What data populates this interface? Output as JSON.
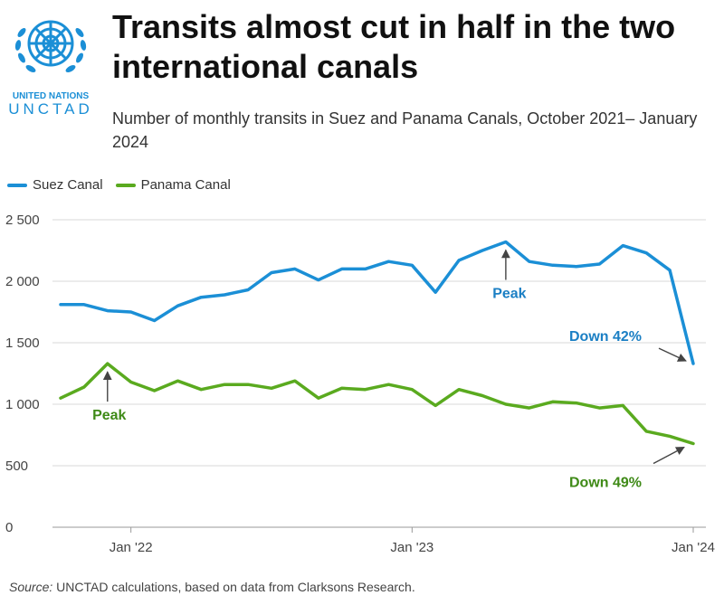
{
  "logo": {
    "line1": "UNITED NATIONS",
    "line2": "UNCTAD"
  },
  "title": "Transits almost cut in half in the two international canals",
  "subtitle": "Number of monthly transits in Suez and Panama Canals, October 2021– January 2024",
  "source": {
    "label": "Source:",
    "text": " UNCTAD calculations, based on data from Clarksons Research."
  },
  "colors": {
    "suez": "#1b8fd6",
    "panama": "#5aaa1f",
    "grid": "#d9d9d9",
    "panama_text": "#3f8a17",
    "suez_text": "#1b7fc4"
  },
  "chart_data": {
    "type": "line",
    "title": "Transits almost cut in half in the two international canals",
    "x": [
      "2021-10",
      "2021-11",
      "2021-12",
      "2022-01",
      "2022-02",
      "2022-03",
      "2022-04",
      "2022-05",
      "2022-06",
      "2022-07",
      "2022-08",
      "2022-09",
      "2022-10",
      "2022-11",
      "2022-12",
      "2023-01",
      "2023-02",
      "2023-03",
      "2023-04",
      "2023-05",
      "2023-06",
      "2023-07",
      "2023-08",
      "2023-09",
      "2023-10",
      "2023-11",
      "2023-12",
      "2024-01"
    ],
    "x_tick_labels": [
      {
        "x": "2022-01",
        "label": "Jan '22"
      },
      {
        "x": "2023-01",
        "label": "Jan '23"
      },
      {
        "x": "2024-01",
        "label": "Jan '24"
      }
    ],
    "ylim": [
      0,
      2500
    ],
    "y_ticks": [
      {
        "value": 0,
        "label": "0"
      },
      {
        "value": 500,
        "label": "500"
      },
      {
        "value": 1000,
        "label": "1 000"
      },
      {
        "value": 1500,
        "label": "1 500"
      },
      {
        "value": 2000,
        "label": "2 000"
      },
      {
        "value": 2500,
        "label": "2 500"
      }
    ],
    "grid": true,
    "legend_position": "top-left",
    "series": [
      {
        "name": "Suez Canal",
        "values": [
          1810,
          1810,
          1760,
          1750,
          1680,
          1800,
          1870,
          1890,
          1930,
          2070,
          2100,
          2010,
          2100,
          2100,
          2160,
          2130,
          1910,
          2170,
          2250,
          2320,
          2160,
          2130,
          2120,
          2140,
          2290,
          2230,
          2090,
          1330
        ]
      },
      {
        "name": "Panama Canal",
        "values": [
          1050,
          1140,
          1330,
          1180,
          1110,
          1190,
          1120,
          1160,
          1160,
          1130,
          1190,
          1050,
          1130,
          1120,
          1160,
          1120,
          990,
          1120,
          1070,
          1000,
          970,
          1020,
          1010,
          970,
          990,
          780,
          740,
          680
        ]
      }
    ],
    "annotations": [
      {
        "text": "Peak",
        "series": "Suez Canal",
        "x": "2023-05"
      },
      {
        "text": "Down 42%",
        "series": "Suez Canal",
        "x": "2024-01"
      },
      {
        "text": "Peak",
        "series": "Panama Canal",
        "x": "2021-12"
      },
      {
        "text": "Down 49%",
        "series": "Panama Canal",
        "x": "2024-01"
      }
    ]
  }
}
